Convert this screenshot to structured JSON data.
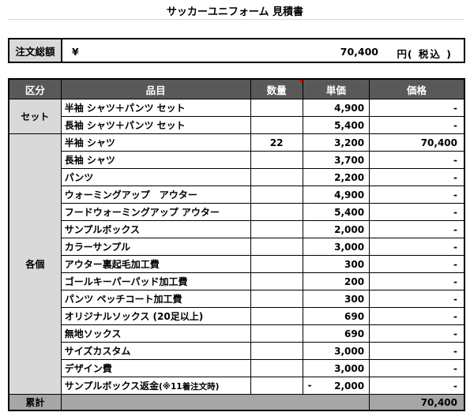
{
  "title": "サッカーユニフォーム 見積書",
  "total": {
    "label": "注文総額",
    "currency": "¥",
    "amount": "70,400",
    "unit": "円",
    "tax": "( 税込 )"
  },
  "headers": {
    "category": "区分",
    "item": "品目",
    "qty": "数量",
    "unit_price": "単価",
    "price": "価格"
  },
  "groups": [
    {
      "category": "セット",
      "rows": [
        {
          "item": "半袖 シャツ＋パンツ セット",
          "qty": "",
          "unit_price": "4,900",
          "price": "-"
        },
        {
          "item": "長袖 シャツ＋パンツ セット",
          "qty": "",
          "unit_price": "5,400",
          "price": "-"
        }
      ]
    },
    {
      "category": "各個",
      "rows": [
        {
          "item": "半袖 シャツ",
          "qty": "22",
          "unit_price": "3,200",
          "price": "70,400"
        },
        {
          "item": "長袖 シャツ",
          "qty": "",
          "unit_price": "3,700",
          "price": "-"
        },
        {
          "item": "パンツ",
          "qty": "",
          "unit_price": "2,200",
          "price": "-"
        },
        {
          "item": "ウォーミングアップ　アウター",
          "qty": "",
          "unit_price": "4,900",
          "price": "-"
        },
        {
          "item": "フードウォーミングアップ アウター",
          "qty": "",
          "unit_price": "5,400",
          "price": "-"
        },
        {
          "item": "サンプルボックス",
          "qty": "",
          "unit_price": "2,000",
          "price": "-"
        },
        {
          "item": "カラーサンプル",
          "qty": "",
          "unit_price": "3,000",
          "price": "-"
        },
        {
          "item": "アウター裏起毛加工費",
          "qty": "",
          "unit_price": "300",
          "price": "-"
        },
        {
          "item": "ゴールキーパーパッド加工費",
          "qty": "",
          "unit_price": "200",
          "price": "-"
        },
        {
          "item": "パンツ ペッチコート加工費",
          "qty": "",
          "unit_price": "300",
          "price": "-"
        },
        {
          "item": "オリジナルソックス (20足以上)",
          "qty": "",
          "unit_price": "690",
          "price": "-"
        },
        {
          "item": "無地ソックス",
          "qty": "",
          "unit_price": "690",
          "price": "-"
        },
        {
          "item": "サイズカスタム",
          "qty": "",
          "unit_price": "3,000",
          "price": "-"
        },
        {
          "item": "デザイン費",
          "qty": "",
          "unit_price": "3,000",
          "price": "-"
        },
        {
          "item": "サンプルボックス返金",
          "item_note": "(※11着注文時)",
          "qty": "",
          "unit_price_sign": "-",
          "unit_price": "2,000",
          "price": "-"
        }
      ]
    }
  ],
  "footer": {
    "label": "累計",
    "price": "70,400"
  },
  "colors": {
    "header_bg": "#595959",
    "category_bg": "#d9d9d9",
    "footer_bg": "#a6a6a6",
    "comment_marker": "#e00000"
  }
}
